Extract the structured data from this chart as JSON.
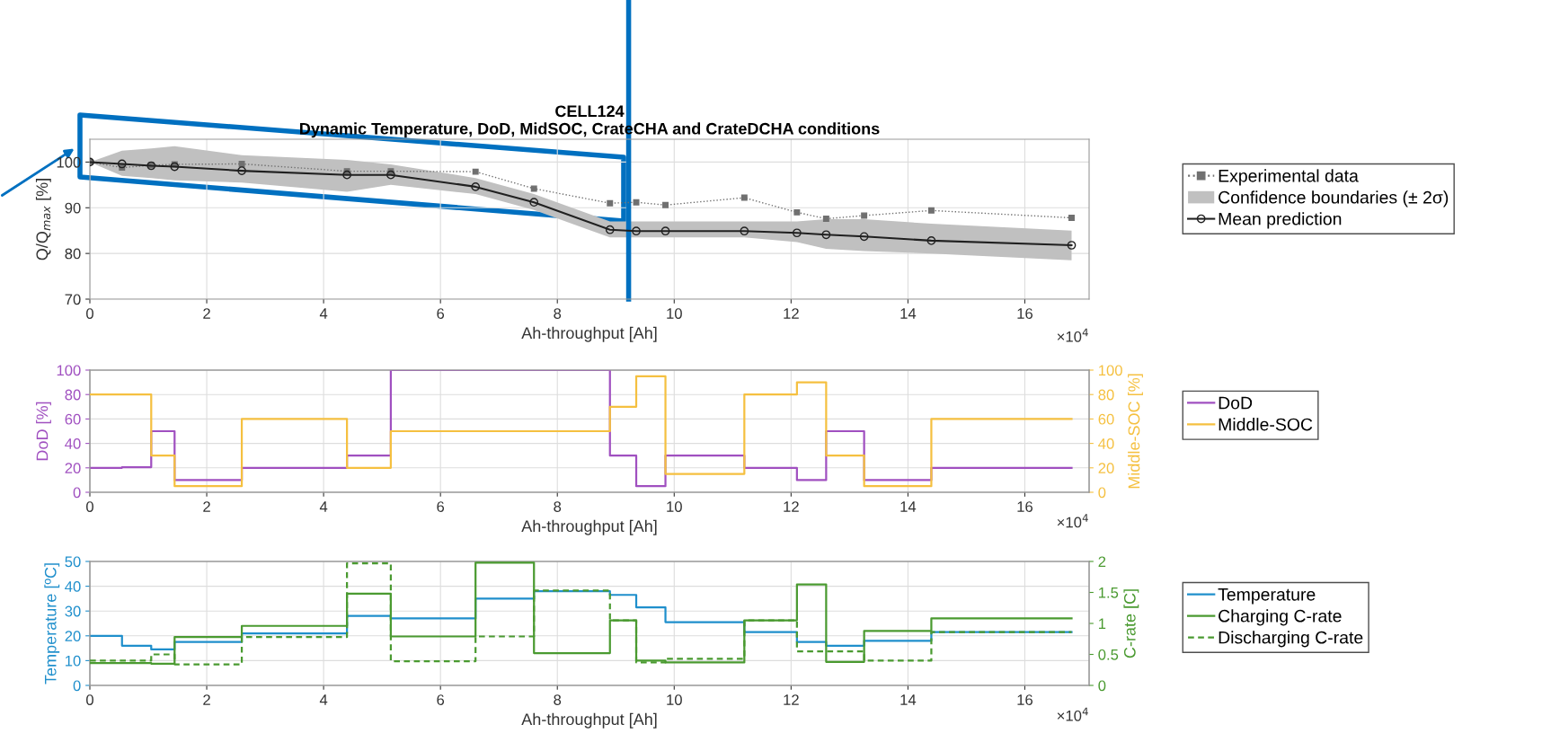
{
  "chart_data": [
    {
      "type": "line",
      "title": "CELL124",
      "subtitle": "Dynamic Temperature, DoD, MidSOC, CrateCHA and CrateDCHA conditions",
      "xlabel": "Ah-throughput [Ah]",
      "ylabel": "Q/Q$_{max}$ [%]",
      "annotations": [
        "×10$^{4}$"
      ],
      "series": [
        {
          "name": "Experimental data",
          "type": "line",
          "color": "#707070",
          "marker": "square",
          "line_style": "dotted",
          "x": [
            0,
            0.55,
            1.05,
            1.45,
            2.6,
            4.4,
            5.15,
            6.6,
            7.6,
            8.9,
            9.35,
            9.85,
            11.2,
            12.1,
            12.6,
            13.25,
            14.4,
            16.8
          ],
          "values": [
            100,
            98.8,
            99.3,
            99.5,
            99.6,
            98.0,
            98.0,
            97.9,
            94.2,
            91.0,
            91.2,
            90.6,
            92.2,
            89.0,
            87.6,
            88.3,
            89.4,
            87.8
          ]
        },
        {
          "name": "Confidence boundaries (± 2σ)",
          "type": "area",
          "color": "#c0c0c0"
        },
        {
          "name": "Mean prediction",
          "type": "line",
          "color": "#202020",
          "marker": "circle",
          "line_style": "solid",
          "x": [
            0,
            0.55,
            1.05,
            1.45,
            2.6,
            4.4,
            5.15,
            6.6,
            7.6,
            8.9,
            9.35,
            9.85,
            11.2,
            12.1,
            12.6,
            13.25,
            14.4,
            16.8
          ],
          "values": [
            100,
            99.6,
            99.2,
            99.0,
            98.1,
            97.2,
            97.2,
            94.6,
            91.2,
            85.2,
            84.9,
            84.9,
            84.9,
            84.5,
            84.1,
            83.7,
            82.8,
            81.8
          ],
          "lower": [
            100,
            97,
            96.5,
            96,
            95.5,
            93.5,
            95,
            93,
            89.5,
            83.5,
            83.5,
            83.5,
            83.5,
            82.5,
            81,
            80.5,
            80,
            78.5
          ],
          "upper": [
            100,
            102.5,
            103,
            103.5,
            101.5,
            100.5,
            99.5,
            96.5,
            93,
            87,
            87,
            87,
            87,
            87,
            87.5,
            87.5,
            86.5,
            85
          ]
        }
      ],
      "xlim": [
        0,
        17.1
      ],
      "xticks": [
        0,
        2,
        4,
        6,
        8,
        10,
        12,
        14,
        16
      ],
      "ylim": [
        70,
        105
      ],
      "yticks": [
        70,
        80,
        90,
        100
      ],
      "grid": true,
      "legend": "right",
      "ref_lines": [
        {
          "axis": "x",
          "value": 9.22,
          "color": "#0070c0"
        }
      ]
    },
    {
      "type": "step",
      "xlabel": "Ah-throughput [Ah]",
      "ylabel": "DoD [%]",
      "y2label": "Middle-SOC [%]",
      "annotations": [
        "×10$^{4}$"
      ],
      "series": [
        {
          "name": "DoD",
          "color": "#a050c0",
          "x": [
            0,
            0.55,
            1.05,
            1.45,
            2.6,
            4.4,
            5.15,
            6.6,
            7.6,
            8.9,
            9.35,
            9.85,
            11.2,
            12.1,
            12.6,
            13.25,
            14.4,
            16.8
          ],
          "values": [
            20,
            20.5,
            50,
            10,
            20,
            30,
            100,
            100,
            100,
            30,
            5,
            30,
            20,
            10,
            50,
            10,
            20,
            20
          ]
        },
        {
          "name": "Middle-SOC",
          "color": "#f5c040",
          "axis": "y2",
          "x": [
            0,
            0.55,
            1.05,
            1.45,
            2.6,
            4.4,
            5.15,
            6.6,
            7.6,
            8.9,
            9.35,
            9.85,
            11.2,
            12.1,
            12.6,
            13.25,
            14.4,
            16.8
          ],
          "values": [
            80,
            80,
            30,
            5,
            60,
            20,
            50,
            50,
            50,
            70,
            95,
            15,
            80,
            90,
            30,
            5,
            60,
            60
          ]
        }
      ],
      "xlim": [
        0,
        17.1
      ],
      "xticks": [
        0,
        2,
        4,
        6,
        8,
        10,
        12,
        14,
        16
      ],
      "ylim": [
        0,
        100
      ],
      "yticks": [
        0,
        20,
        40,
        60,
        80,
        100
      ],
      "y2lim": [
        0,
        100
      ],
      "y2ticks": [
        0,
        20,
        40,
        60,
        80,
        100
      ],
      "grid": true,
      "legend": "right"
    },
    {
      "type": "step",
      "xlabel": "Ah-throughput [Ah]",
      "ylabel": "Temperature [ºC]",
      "y2label": "C-rate [C]",
      "annotations": [
        "×10$^{4}$"
      ],
      "series": [
        {
          "name": "Temperature",
          "color": "#1f8fcc",
          "line_style": "solid",
          "x": [
            0,
            0.55,
            1.05,
            1.45,
            2.6,
            4.4,
            5.15,
            6.6,
            7.6,
            8.9,
            9.35,
            9.85,
            11.2,
            12.1,
            12.6,
            13.25,
            14.4,
            16.8
          ],
          "values": [
            20,
            16,
            14.5,
            17.5,
            21,
            28,
            27,
            35,
            38,
            36.5,
            31.5,
            25.5,
            21.5,
            17.5,
            16,
            18,
            21.5,
            21.5
          ]
        },
        {
          "name": "Charging C-rate",
          "color": "#4a9a30",
          "axis": "y2",
          "line_style": "solid",
          "x": [
            0,
            0.55,
            1.05,
            1.45,
            2.6,
            4.4,
            5.15,
            6.6,
            7.6,
            8.9,
            9.35,
            9.85,
            11.2,
            12.1,
            12.6,
            13.25,
            14.4,
            16.8
          ],
          "values": [
            0.36,
            0.36,
            0.35,
            0.78,
            0.96,
            1.48,
            0.79,
            1.98,
            0.52,
            1.05,
            0.4,
            0.37,
            1.05,
            1.63,
            0.38,
            0.88,
            1.08,
            1.08
          ]
        },
        {
          "name": "Discharging C-rate",
          "color": "#4a9a30",
          "axis": "y2",
          "line_style": "dashed",
          "x": [
            0,
            0.55,
            1.05,
            1.45,
            2.6,
            4.4,
            5.15,
            6.6,
            7.6,
            8.9,
            9.35,
            9.85,
            11.2,
            12.1,
            12.6,
            13.25,
            14.4,
            16.8
          ],
          "values": [
            0.4,
            0.4,
            0.5,
            0.34,
            0.78,
            1.97,
            0.39,
            0.79,
            1.53,
            1.05,
            0.37,
            0.43,
            1.05,
            0.55,
            0.55,
            0.4,
            0.86,
            0.86
          ]
        }
      ],
      "xlim": [
        0,
        17.1
      ],
      "xticks": [
        0,
        2,
        4,
        6,
        8,
        10,
        12,
        14,
        16
      ],
      "ylim": [
        0,
        50
      ],
      "yticks": [
        0,
        10,
        20,
        30,
        40,
        50
      ],
      "y2lim": [
        0,
        2
      ],
      "y2ticks": [
        0,
        0.5,
        1,
        1.5,
        2
      ],
      "grid": true,
      "legend": "right"
    }
  ]
}
